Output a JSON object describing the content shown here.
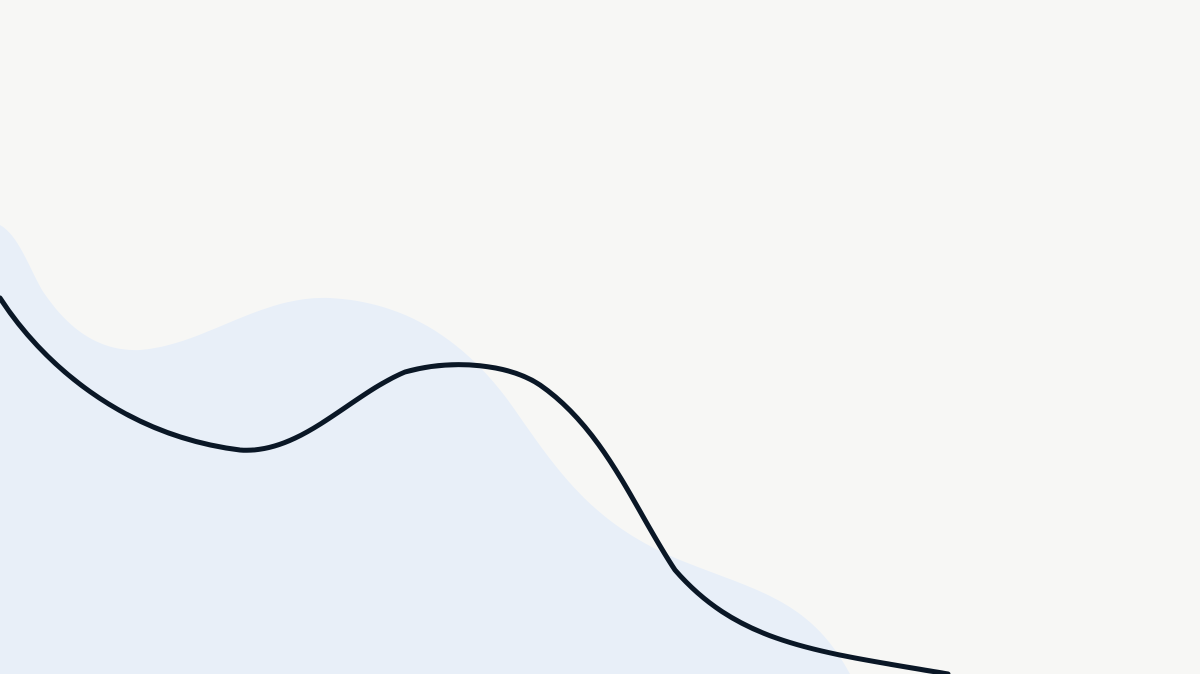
{
  "colors": {
    "background": "#f7f7f5",
    "blob_fill": "#e8eff8",
    "curve_stroke": "#0a1726"
  },
  "shapes": {
    "blob": "light-blue-wave-blob",
    "curve": "dark-wavy-line"
  }
}
